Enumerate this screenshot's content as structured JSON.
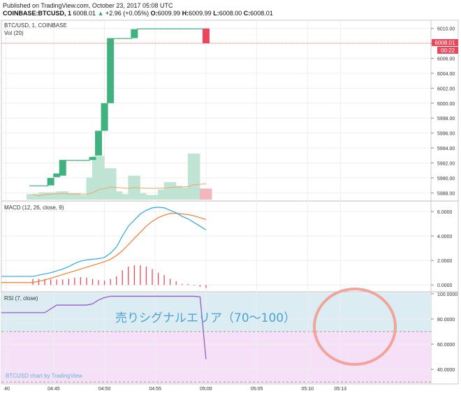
{
  "header": {
    "published": "Published on TradingView.com, October 23, 2017 05:08 UTC",
    "symbol": "COINBASE:BTCUSD, 1",
    "last": "6008.01",
    "change_arrow": "▲",
    "change": "+2.96 (+0.05%)",
    "o_label": "O:",
    "o_val": "6009.99",
    "h_label": "H:",
    "h_val": "6009.99",
    "l_label": "L:",
    "l_val": "6008.00",
    "c_label": "C:",
    "c_val": "6008.01"
  },
  "colors": {
    "up": "#3fb27f",
    "down": "#e8485a",
    "vol_up": "#bfe4d4",
    "vol_down": "#f4b6bd",
    "macd": "#2ea8e0",
    "signal": "#f07c2a",
    "hist": "#e8485a",
    "rsi": "#9b59c8",
    "rsi_upper_band": "#dcecf3",
    "rsi_lower_band": "#f5e0f7",
    "annotation": "#4aa3d8",
    "circle": "#f0a49a"
  },
  "chart_data": [
    {
      "type": "candlestick",
      "legend": [
        "BTC/USD, 1, COINBASE",
        "Vol (20)"
      ],
      "ylim": [
        5987,
        6011
      ],
      "yticks": [
        "6010.00",
        "6008.00",
        "6006.00",
        "6004.00",
        "6002.00",
        "6000.00",
        "5998.00",
        "5996.00",
        "5994.00",
        "5992.00",
        "5990.00",
        "5988.00"
      ],
      "last_price_label": "6008.01",
      "countdown_label": "00:22",
      "candles": [
        {
          "o": 5989.0,
          "c": 5989.0
        },
        {
          "o": 5989.0,
          "c": 5989.0
        },
        {
          "o": 5989.0,
          "c": 5989.0
        },
        {
          "o": 5989.0,
          "c": 5990.0
        },
        {
          "o": 5990.1,
          "c": 5990.6
        },
        {
          "o": 5990.3,
          "c": 5992.4
        },
        {
          "o": 5992.4,
          "c": 5992.4
        },
        {
          "o": 5992.4,
          "c": 5992.4
        },
        {
          "o": 5992.4,
          "c": 5992.4
        },
        {
          "o": 5992.4,
          "c": 5992.4
        },
        {
          "o": 5992.4,
          "c": 5992.8
        },
        {
          "o": 5993.0,
          "c": 5996.3
        },
        {
          "o": 5996.3,
          "c": 6000.0
        },
        {
          "o": 6000.0,
          "c": 6008.7
        },
        {
          "o": 6008.7,
          "c": 6008.7
        },
        {
          "o": 6008.7,
          "c": 6008.7
        },
        {
          "o": 6008.7,
          "c": 6008.7
        },
        {
          "o": 6008.7,
          "c": 6009.9
        },
        {
          "o": 6009.99,
          "c": 6009.99
        },
        {
          "o": 6009.99,
          "c": 6009.99
        },
        {
          "o": 6009.99,
          "c": 6009.99
        },
        {
          "o": 6009.99,
          "c": 6009.99
        },
        {
          "o": 6009.99,
          "c": 6009.99
        },
        {
          "o": 6009.99,
          "c": 6009.99
        },
        {
          "o": 6009.99,
          "c": 6009.99
        },
        {
          "o": 6009.99,
          "c": 6009.99
        },
        {
          "o": 6009.99,
          "c": 6009.99
        },
        {
          "o": 6009.99,
          "c": 6009.99
        },
        {
          "o": 6009.99,
          "c": 6009.99
        },
        {
          "o": 6009.99,
          "c": 6008.01
        }
      ],
      "volume_rel": [
        0.12,
        0.05,
        0.16,
        0.14,
        0.16,
        0.18,
        0.05,
        0.14,
        0.1,
        0.05,
        0.48,
        0.95,
        0.52,
        0.68,
        0.18,
        0.12,
        0.1,
        0.52,
        0.14,
        0.1,
        0.1,
        0.1,
        0.22,
        0.38,
        0.3,
        0.26,
        0.22,
        1.0,
        0.24,
        0.24
      ]
    },
    {
      "type": "line",
      "legend": "MACD (12, 26, close, 9)",
      "ylim": [
        -0.5,
        6.8
      ],
      "yticks": [
        "6.0000",
        "4.0000",
        "2.0000",
        "0.0000"
      ],
      "macd": [
        0.7,
        0.8,
        0.9,
        1.0,
        1.15,
        1.3,
        1.5,
        1.75,
        1.95,
        2.05,
        2.1,
        2.15,
        2.25,
        2.6,
        3.1,
        4.0,
        4.8,
        5.3,
        5.8,
        6.1,
        6.3,
        6.35,
        6.3,
        6.1,
        5.9,
        5.6,
        5.4,
        5.1,
        4.8,
        4.5
      ],
      "signal": [
        0.2,
        0.3,
        0.4,
        0.55,
        0.7,
        0.85,
        1.0,
        1.15,
        1.3,
        1.45,
        1.6,
        1.75,
        1.9,
        2.1,
        2.4,
        2.8,
        3.3,
        3.8,
        4.3,
        4.8,
        5.2,
        5.5,
        5.7,
        5.85,
        5.85,
        5.8,
        5.75,
        5.65,
        5.5,
        5.35
      ],
      "hist": [
        0.5,
        0.5,
        0.5,
        0.45,
        0.45,
        0.45,
        0.5,
        0.6,
        0.65,
        0.6,
        0.5,
        0.4,
        0.35,
        0.5,
        0.7,
        1.2,
        1.5,
        1.6,
        1.6,
        1.5,
        1.3,
        1.0,
        0.8,
        0.5,
        0.3,
        0.1,
        0.08,
        -0.05,
        -0.15,
        -0.25
      ]
    },
    {
      "type": "line",
      "legend": "RSI (7, close)",
      "ylim": [
        29,
        101
      ],
      "yticks": [
        "100.0000",
        "80.0000",
        "60.0000",
        "40.0000"
      ],
      "bands": [
        70,
        30
      ],
      "values": [
        85,
        85,
        85,
        88,
        91,
        91,
        91,
        91,
        91,
        91,
        92,
        95,
        97,
        98,
        98,
        98,
        98,
        98,
        98,
        98,
        98,
        98,
        98,
        98,
        98,
        98,
        98,
        98,
        97.5,
        48
      ],
      "annotation": "売りシグナルエリア（70〜100）",
      "watermark": "BTCUSD chart by TradingView"
    }
  ],
  "xaxis": {
    "ticks": [
      {
        "label": "40",
        "slot": -4.5
      },
      {
        "label": "04:45",
        "slot": 3.5
      },
      {
        "label": "04:50",
        "slot": 12
      },
      {
        "label": "04:55",
        "slot": 20.5
      },
      {
        "label": "05:00",
        "slot": 29
      },
      {
        "label": "05:05",
        "slot": 37.5
      },
      {
        "label": "05:10",
        "slot": 46
      },
      {
        "label": "05:13",
        "slot": 51.5
      }
    ]
  }
}
